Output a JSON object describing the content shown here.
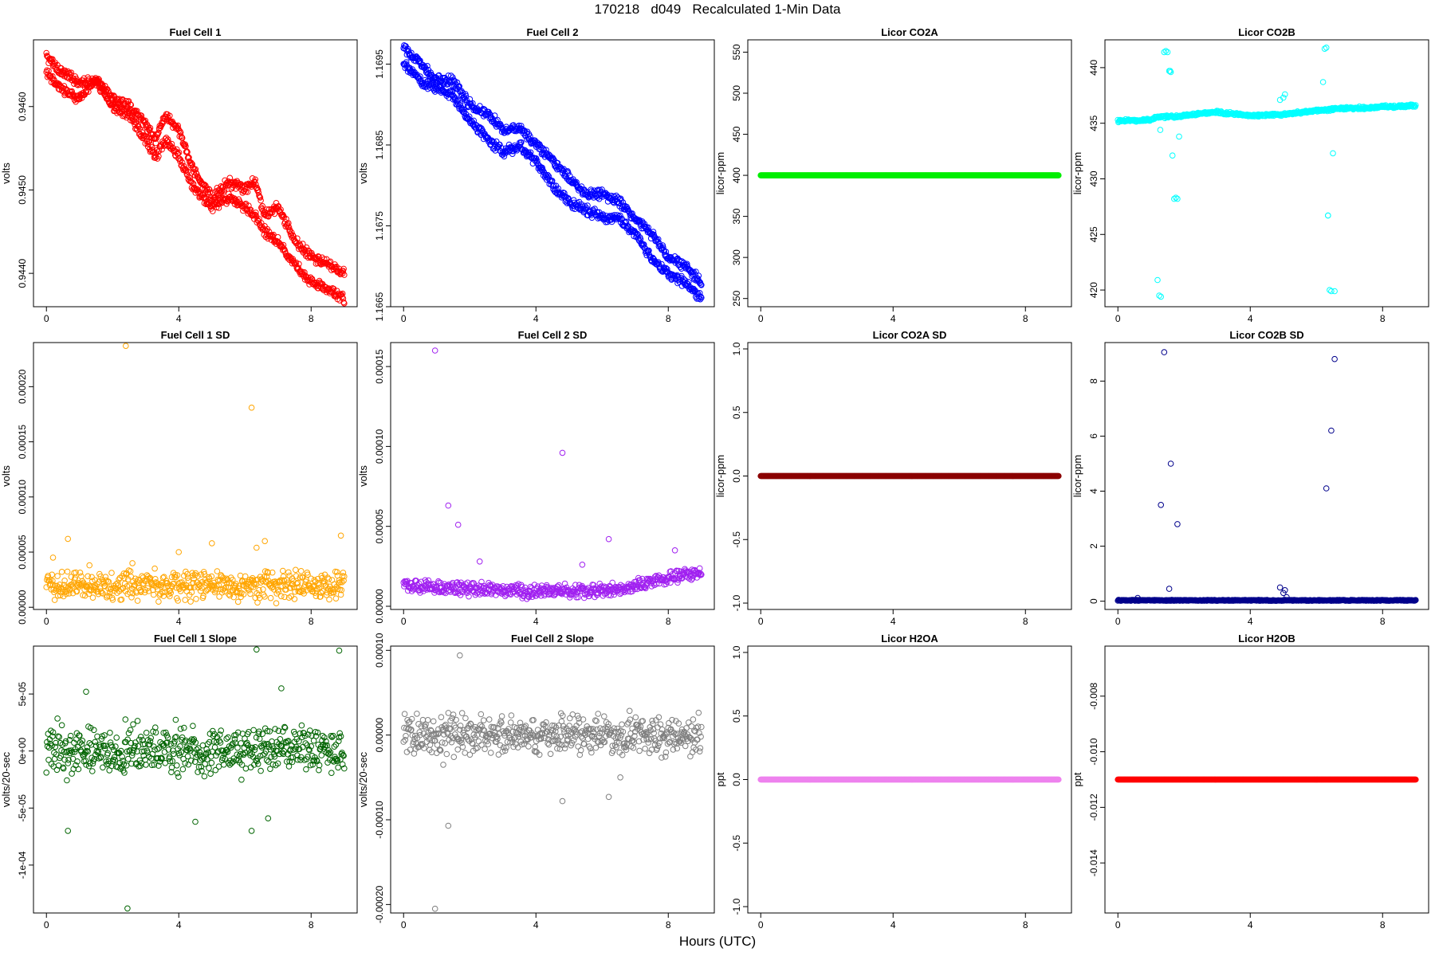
{
  "page": {
    "title": "170218   d049   Recalculated 1-Min Data",
    "x_axis_title": "Hours (UTC)"
  },
  "chart_data": [
    {
      "type": "scatter",
      "title": "Fuel Cell 1",
      "ylabel": "volts",
      "color": "#ff0000",
      "xlim": [
        0,
        9
      ],
      "ylim": [
        0.9436,
        0.9468
      ],
      "xticks": [
        0,
        4,
        8
      ],
      "xtick_labels": [
        "0",
        "4",
        "8"
      ],
      "yticks": [
        0.944,
        0.945,
        0.946
      ],
      "ytick_labels": [
        "0.9440",
        "0.9450",
        "0.9460"
      ],
      "series": [
        {
          "kind": "trend",
          "x": [
            0,
            0.5,
            1.0,
            1.5,
            2.0,
            2.5,
            3.0,
            3.3,
            3.6,
            4.0,
            4.5,
            5.0,
            5.5,
            6.0,
            6.3,
            6.6,
            7.0,
            7.5,
            8.0,
            8.5,
            9.0
          ],
          "y": [
            0.9466,
            0.9464,
            0.9463,
            0.9463,
            0.9461,
            0.946,
            0.9458,
            0.9456,
            0.9459,
            0.9457,
            0.9452,
            0.9449,
            0.9451,
            0.945,
            0.9451,
            0.9447,
            0.9448,
            0.9444,
            0.9442,
            0.9441,
            0.944
          ],
          "spread": 7e-05
        },
        {
          "kind": "trend",
          "x": [
            0,
            0.5,
            1.0,
            1.5,
            2.0,
            2.5,
            3.0,
            3.3,
            3.6,
            4.0,
            4.5,
            5.0,
            5.5,
            6.0,
            6.3,
            6.6,
            7.0,
            7.5,
            8.0,
            8.5,
            9.0
          ],
          "y": [
            0.9464,
            0.9462,
            0.9461,
            0.9463,
            0.946,
            0.9459,
            0.9456,
            0.9454,
            0.9456,
            0.9454,
            0.945,
            0.9448,
            0.9449,
            0.9448,
            0.9447,
            0.9445,
            0.9444,
            0.9441,
            0.9439,
            0.9438,
            0.9437
          ],
          "spread": 7e-05
        }
      ]
    },
    {
      "type": "scatter",
      "title": "Fuel Cell 2",
      "ylabel": "volts",
      "color": "#0000ff",
      "xlim": [
        0,
        9
      ],
      "ylim": [
        1.1665,
        1.1698
      ],
      "xticks": [
        0,
        4,
        8
      ],
      "xtick_labels": [
        "0",
        "4",
        "8"
      ],
      "yticks": [
        1.1665,
        1.1675,
        1.1685,
        1.1695
      ],
      "ytick_labels": [
        "1.1665",
        "1.1675",
        "1.1685",
        "1.1695"
      ],
      "series": [
        {
          "kind": "trend",
          "x": [
            0,
            0.5,
            1.0,
            1.5,
            2.0,
            2.5,
            3.0,
            3.5,
            4.0,
            4.5,
            5.0,
            5.5,
            6.0,
            6.5,
            7.0,
            7.5,
            8.0,
            8.5,
            9.0
          ],
          "y": [
            1.1697,
            1.1695,
            1.1693,
            1.1693,
            1.169,
            1.1689,
            1.1687,
            1.1687,
            1.1685,
            1.1683,
            1.1681,
            1.1679,
            1.1679,
            1.1678,
            1.1676,
            1.1674,
            1.1671,
            1.167,
            1.1668
          ],
          "spread": 7e-05
        },
        {
          "kind": "trend",
          "x": [
            0,
            0.5,
            1.0,
            1.5,
            2.0,
            2.5,
            3.0,
            3.5,
            4.0,
            4.5,
            5.0,
            5.5,
            6.0,
            6.5,
            7.0,
            7.5,
            8.0,
            8.5,
            9.0
          ],
          "y": [
            1.1695,
            1.1693,
            1.1692,
            1.1691,
            1.1688,
            1.1686,
            1.1684,
            1.1685,
            1.1683,
            1.168,
            1.1678,
            1.1677,
            1.1676,
            1.1676,
            1.1674,
            1.1671,
            1.1669,
            1.1668,
            1.1666
          ],
          "spread": 7e-05
        }
      ]
    },
    {
      "type": "scatter",
      "title": "Licor CO2A",
      "ylabel": "licor-ppm",
      "color": "#00ee00",
      "xlim": [
        0,
        9
      ],
      "ylim": [
        240,
        565
      ],
      "xticks": [
        0,
        4,
        8
      ],
      "xtick_labels": [
        "0",
        "4",
        "8"
      ],
      "yticks": [
        250,
        300,
        350,
        400,
        450,
        500,
        550
      ],
      "ytick_labels": [
        "250",
        "300",
        "350",
        "400",
        "450",
        "500",
        "550"
      ],
      "series": [
        {
          "kind": "flat",
          "value": 400
        }
      ]
    },
    {
      "type": "scatter",
      "title": "Licor CO2B",
      "ylabel": "licor-ppm",
      "color": "#00ffff",
      "xlim": [
        0,
        9
      ],
      "ylim": [
        418.5,
        442.5
      ],
      "xticks": [
        0,
        4,
        8
      ],
      "xtick_labels": [
        "0",
        "4",
        "8"
      ],
      "yticks": [
        420,
        425,
        430,
        435,
        440
      ],
      "ytick_labels": [
        "420",
        "425",
        "430",
        "435",
        "440"
      ],
      "series": [
        {
          "kind": "trend",
          "x": [
            0,
            1.0,
            1.2,
            1.7,
            3.0,
            4.0,
            5.0,
            6.0,
            6.3,
            6.6,
            7.5,
            9.0
          ],
          "y": [
            435.2,
            435.3,
            435.6,
            435.6,
            436.0,
            435.7,
            435.8,
            436.1,
            436.2,
            436.3,
            436.4,
            436.6
          ],
          "spread": 0.15
        }
      ],
      "outliers": {
        "x": [
          1.2,
          1.25,
          1.3,
          1.4,
          1.45,
          1.5,
          1.55,
          1.6,
          1.65,
          1.7,
          1.75,
          1.8,
          1.85,
          1.28,
          1.58,
          6.2,
          6.25,
          6.3,
          6.35,
          6.4,
          6.45,
          6.5,
          6.55,
          4.9,
          5.0,
          5.05,
          6.35
        ],
        "y": [
          420.9,
          419.5,
          419.4,
          441.4,
          441.5,
          441.4,
          439.7,
          439.6,
          432.1,
          428.2,
          428.3,
          428.2,
          433.8,
          434.4,
          439.7,
          438.7,
          441.7,
          441.8,
          426.7,
          420.0,
          419.9,
          432.3,
          419.9,
          437.1,
          437.3,
          437.6,
          426.7
        ]
      }
    },
    {
      "type": "scatter",
      "title": "Fuel Cell 1 SD",
      "ylabel": "volts",
      "color": "#ffa500",
      "xlim": [
        0,
        9
      ],
      "ylim": [
        -2e-06,
        0.00024
      ],
      "xticks": [
        0,
        4,
        8
      ],
      "xtick_labels": [
        "0",
        "4",
        "8"
      ],
      "yticks": [
        0,
        5e-05,
        0.0001,
        0.00015,
        0.0002
      ],
      "ytick_labels": [
        "0.00000",
        "0.00005",
        "0.00010",
        "0.00015",
        "0.00020"
      ],
      "series": [
        {
          "kind": "noise",
          "center": 2e-05,
          "spread": 8e-06
        }
      ],
      "outliers": {
        "x": [
          2.4,
          6.2,
          0.65,
          4.0,
          5.0,
          6.35,
          6.6,
          8.9,
          0.2,
          1.3,
          2.6
        ],
        "y": [
          0.000237,
          0.000181,
          6.2e-05,
          5e-05,
          5.8e-05,
          5.4e-05,
          6e-05,
          6.5e-05,
          4.5e-05,
          3.8e-05,
          4e-05
        ]
      }
    },
    {
      "type": "scatter",
      "title": "Fuel Cell 2 SD",
      "ylabel": "volts",
      "color": "#a020f0",
      "xlim": [
        0,
        9
      ],
      "ylim": [
        -2e-06,
        0.000165
      ],
      "xticks": [
        0,
        4,
        8
      ],
      "xtick_labels": [
        "0",
        "4",
        "8"
      ],
      "yticks": [
        0,
        5e-05,
        0.0001,
        0.00015
      ],
      "ytick_labels": [
        "0.00000",
        "0.00005",
        "0.00010",
        "0.00015"
      ],
      "series": [
        {
          "kind": "trend",
          "x": [
            0,
            2,
            4,
            6,
            7,
            8,
            9
          ],
          "y": [
            1.3e-05,
            1.1e-05,
            9e-06,
            1e-05,
            1.3e-05,
            1.8e-05,
            2.1e-05
          ],
          "spread": 5e-06
        }
      ],
      "outliers": {
        "x": [
          0.95,
          1.35,
          1.65,
          4.8,
          6.2,
          8.2,
          2.3,
          5.4
        ],
        "y": [
          0.00016,
          6.3e-05,
          5.1e-05,
          9.6e-05,
          4.2e-05,
          3.5e-05,
          2.8e-05,
          2.6e-05
        ]
      }
    },
    {
      "type": "scatter",
      "title": "Licor CO2A SD",
      "ylabel": "licor-ppm",
      "color": "#8b0000",
      "xlim": [
        0,
        9
      ],
      "ylim": [
        -1.05,
        1.05
      ],
      "xticks": [
        0,
        4,
        8
      ],
      "xtick_labels": [
        "0",
        "4",
        "8"
      ],
      "yticks": [
        -1.0,
        -0.5,
        0.0,
        0.5,
        1.0
      ],
      "ytick_labels": [
        "-1.0",
        "-0.5",
        "0.0",
        "0.5",
        "1.0"
      ],
      "series": [
        {
          "kind": "flat",
          "value": 0
        }
      ]
    },
    {
      "type": "scatter",
      "title": "Licor CO2B SD",
      "ylabel": "licor-ppm",
      "color": "#00008b",
      "xlim": [
        0,
        9
      ],
      "ylim": [
        -0.3,
        9.4
      ],
      "xticks": [
        0,
        4,
        8
      ],
      "xtick_labels": [
        "0",
        "4",
        "8"
      ],
      "yticks": [
        0,
        2,
        4,
        6,
        8
      ],
      "ytick_labels": [
        "0",
        "2",
        "4",
        "6",
        "8"
      ],
      "series": [
        {
          "kind": "flat",
          "value": 0.03,
          "jitter": 0.03
        }
      ],
      "outliers": {
        "x": [
          1.4,
          1.3,
          1.6,
          1.8,
          1.55,
          0.6,
          6.55,
          6.45,
          6.3,
          4.9,
          5.0,
          5.05,
          5.1
        ],
        "y": [
          9.05,
          3.5,
          5.0,
          2.8,
          0.45,
          0.12,
          8.8,
          6.2,
          4.1,
          0.5,
          0.3,
          0.4,
          0.15
        ]
      }
    },
    {
      "type": "scatter",
      "title": "Fuel Cell 1 Slope",
      "ylabel": "volts/20-sec",
      "color": "#006400",
      "xlim": [
        0,
        9
      ],
      "ylim": [
        -0.000142,
        9.2e-05
      ],
      "xticks": [
        0,
        4,
        8
      ],
      "xtick_labels": [
        "0",
        "4",
        "8"
      ],
      "yticks": [
        -0.0001,
        -5e-05,
        0,
        5e-05
      ],
      "ytick_labels": [
        "-1e-04",
        "-5e-05",
        "0e+00",
        "5e-05"
      ],
      "series": [
        {
          "kind": "noise",
          "center": 0,
          "spread": 1.3e-05
        }
      ],
      "outliers": {
        "x": [
          2.45,
          6.35,
          8.85,
          0.65,
          1.2,
          4.5,
          6.2,
          6.7,
          7.1
        ],
        "y": [
          -0.000138,
          8.9e-05,
          8.8e-05,
          -7e-05,
          5.2e-05,
          -6.2e-05,
          -7e-05,
          -5.9e-05,
          5.5e-05
        ]
      }
    },
    {
      "type": "scatter",
      "title": "Fuel Cell 2 Slope",
      "ylabel": "volts/20-sec",
      "color": "#7f7f7f",
      "xlim": [
        0,
        9
      ],
      "ylim": [
        -0.00021,
        0.000105
      ],
      "xticks": [
        0,
        4,
        8
      ],
      "xtick_labels": [
        "0",
        "4",
        "8"
      ],
      "yticks": [
        -0.0002,
        -0.0001,
        0,
        0.0001
      ],
      "ytick_labels": [
        "-0.00020",
        "-0.00010",
        "0.00000",
        "0.00010"
      ],
      "series": [
        {
          "kind": "noise",
          "center": 0,
          "spread": 1.4e-05
        }
      ],
      "outliers": {
        "x": [
          0.95,
          1.7,
          1.35,
          4.8,
          6.2,
          6.55,
          1.2
        ],
        "y": [
          -0.000205,
          9.4e-05,
          -0.000107,
          -7.8e-05,
          -7.3e-05,
          -5e-05,
          -3.5e-05
        ]
      }
    },
    {
      "type": "scatter",
      "title": "Licor H2OA",
      "ylabel": "ppt",
      "color": "#ee82ee",
      "xlim": [
        0,
        9
      ],
      "ylim": [
        -1.05,
        1.05
      ],
      "xticks": [
        0,
        4,
        8
      ],
      "xtick_labels": [
        "0",
        "4",
        "8"
      ],
      "yticks": [
        -1.0,
        -0.5,
        0.0,
        0.5,
        1.0
      ],
      "ytick_labels": [
        "-1.0",
        "-0.5",
        "0.0",
        "0.5",
        "1.0"
      ],
      "series": [
        {
          "kind": "flat",
          "value": 0
        }
      ]
    },
    {
      "type": "scatter",
      "title": "Licor H2OB",
      "ylabel": "ppt",
      "color": "#ff0000",
      "xlim": [
        0,
        9
      ],
      "ylim": [
        -0.0158,
        -0.0062
      ],
      "xticks": [
        0,
        4,
        8
      ],
      "xtick_labels": [
        "0",
        "4",
        "8"
      ],
      "yticks": [
        -0.014,
        -0.012,
        -0.01,
        -0.008
      ],
      "ytick_labels": [
        "-0.014",
        "-0.012",
        "-0.010",
        "-0.008"
      ],
      "series": [
        {
          "kind": "flat",
          "value": -0.011
        }
      ]
    }
  ]
}
